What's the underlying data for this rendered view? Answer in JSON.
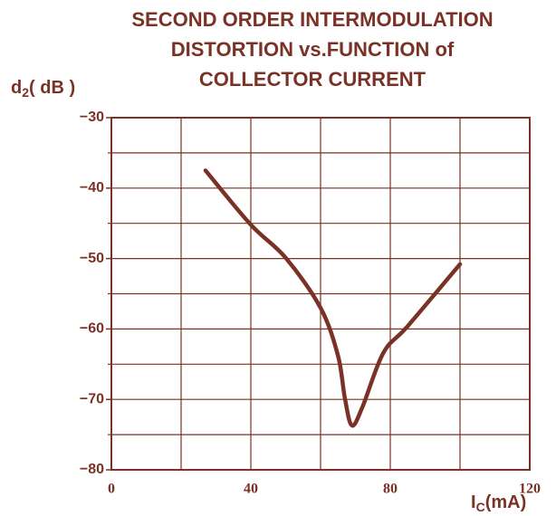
{
  "chart_data": {
    "type": "line",
    "title": [
      "SECOND ORDER INTERMODULATION",
      "DISTORTION vs.FUNCTION of",
      "COLLECTOR CURRENT"
    ],
    "ylabel": {
      "main": "d",
      "sub": "2",
      "rest": "( dB  )"
    },
    "xlabel": {
      "main": "I",
      "sub": "C",
      "rest": "(mA)"
    },
    "x": [
      27,
      40,
      50,
      60,
      65,
      67,
      69,
      72,
      78,
      85,
      100
    ],
    "series": [
      {
        "name": "d2",
        "color": "#7b3226",
        "values": [
          -37.5,
          -45.2,
          -49.9,
          -57,
          -63.8,
          -69.9,
          -73.7,
          -71.1,
          -63.4,
          -59.6,
          -50.8
        ]
      }
    ],
    "xlim": [
      0,
      120
    ],
    "ylim": [
      -80,
      -30
    ],
    "xticks": [
      0,
      40,
      80,
      120
    ],
    "x_minor_ticks": [
      20,
      60,
      100
    ],
    "yticks": [
      {
        "value": -30,
        "label": "−30"
      },
      {
        "value": -40,
        "label": "−40"
      },
      {
        "value": -50,
        "label": "−50"
      },
      {
        "value": -60,
        "label": "−60"
      },
      {
        "value": -70,
        "label": "−70"
      },
      {
        "value": -80,
        "label": "−80"
      }
    ],
    "y_minor_ticks": [
      -35,
      -45,
      -55,
      -65,
      -75
    ],
    "grid": true,
    "color": "#7b3226"
  }
}
